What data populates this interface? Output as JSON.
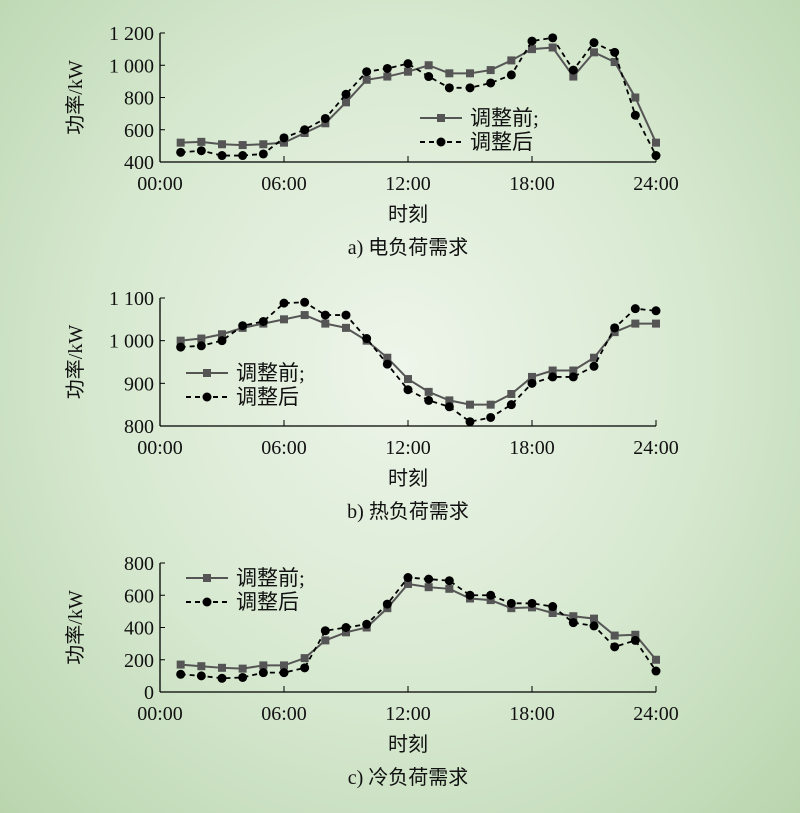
{
  "chart_data": [
    {
      "type": "line",
      "title": "a) 电负荷需求",
      "xlabel": "时刻",
      "ylabel": "功率/kW",
      "ylim": [
        400,
        1200
      ],
      "yticks": [
        400,
        600,
        800,
        1000,
        1200
      ],
      "ytick_labels": [
        "400",
        "600",
        "800",
        "1 000",
        "1 200"
      ],
      "xlim": [
        0,
        24
      ],
      "xticks": [
        0,
        6,
        12,
        18,
        24
      ],
      "xtick_labels": [
        "00:00",
        "06:00",
        "12:00",
        "18:00",
        "24:00"
      ],
      "legend": "center-right",
      "x": [
        1,
        2,
        3,
        4,
        5,
        6,
        7,
        8,
        9,
        10,
        11,
        12,
        13,
        14,
        15,
        16,
        17,
        18,
        19,
        20,
        21,
        22,
        23,
        24
      ],
      "series": [
        {
          "name": "调整前;",
          "style": "solid-square",
          "values": [
            520,
            525,
            510,
            505,
            510,
            520,
            580,
            640,
            770,
            910,
            930,
            960,
            1000,
            950,
            950,
            970,
            1030,
            1100,
            1110,
            930,
            1080,
            1020,
            800,
            520
          ]
        },
        {
          "name": "调整后",
          "style": "dashed-circle",
          "values": [
            460,
            470,
            440,
            440,
            450,
            550,
            600,
            670,
            820,
            960,
            980,
            1010,
            930,
            860,
            860,
            890,
            940,
            1150,
            1170,
            970,
            1140,
            1080,
            690,
            440
          ]
        }
      ]
    },
    {
      "type": "line",
      "title": "b) 热负荷需求",
      "xlabel": "时刻",
      "ylabel": "功率/kW",
      "ylim": [
        800,
        1100
      ],
      "yticks": [
        800,
        900,
        1000,
        1100
      ],
      "ytick_labels": [
        "800",
        "900",
        "1 000",
        "1 100"
      ],
      "xlim": [
        0,
        24
      ],
      "xticks": [
        0,
        6,
        12,
        18,
        24
      ],
      "xtick_labels": [
        "00:00",
        "06:00",
        "12:00",
        "18:00",
        "24:00"
      ],
      "legend": "center-left",
      "x": [
        1,
        2,
        3,
        4,
        5,
        6,
        7,
        8,
        9,
        10,
        11,
        12,
        13,
        14,
        15,
        16,
        17,
        18,
        19,
        20,
        21,
        22,
        23,
        24
      ],
      "series": [
        {
          "name": "调整前;",
          "style": "solid-square",
          "values": [
            1000,
            1005,
            1015,
            1030,
            1040,
            1050,
            1060,
            1040,
            1030,
            1000,
            960,
            910,
            880,
            860,
            850,
            850,
            875,
            915,
            930,
            930,
            960,
            1020,
            1040,
            1040
          ]
        },
        {
          "name": "调整后",
          "style": "dashed-circle",
          "values": [
            985,
            988,
            1000,
            1035,
            1045,
            1088,
            1090,
            1060,
            1060,
            1005,
            945,
            885,
            860,
            845,
            810,
            820,
            850,
            900,
            915,
            915,
            940,
            1030,
            1075,
            1070
          ]
        }
      ]
    },
    {
      "type": "line",
      "title": "c) 冷负荷需求",
      "xlabel": "时刻",
      "ylabel": "功率/kW",
      "ylim": [
        0,
        800
      ],
      "yticks": [
        0,
        200,
        400,
        600,
        800
      ],
      "ytick_labels": [
        "0",
        "200",
        "400",
        "600",
        "800"
      ],
      "xlim": [
        0,
        24
      ],
      "xticks": [
        0,
        6,
        12,
        18,
        24
      ],
      "xtick_labels": [
        "00:00",
        "06:00",
        "12:00",
        "18:00",
        "24:00"
      ],
      "legend": "top-left",
      "x": [
        1,
        2,
        3,
        4,
        5,
        6,
        7,
        8,
        9,
        10,
        11,
        12,
        13,
        14,
        15,
        16,
        17,
        18,
        19,
        20,
        21,
        22,
        23,
        24
      ],
      "series": [
        {
          "name": "调整前;",
          "style": "solid-square",
          "values": [
            170,
            160,
            150,
            145,
            165,
            165,
            210,
            320,
            370,
            400,
            520,
            670,
            650,
            640,
            580,
            570,
            520,
            525,
            490,
            470,
            455,
            350,
            355,
            200
          ]
        },
        {
          "name": "调整后",
          "style": "dashed-circle",
          "values": [
            110,
            100,
            85,
            90,
            120,
            120,
            150,
            380,
            400,
            420,
            545,
            710,
            700,
            690,
            600,
            600,
            550,
            550,
            530,
            430,
            410,
            280,
            320,
            130
          ]
        }
      ]
    }
  ],
  "colors": {
    "before": "#555555",
    "after": "#000000"
  }
}
